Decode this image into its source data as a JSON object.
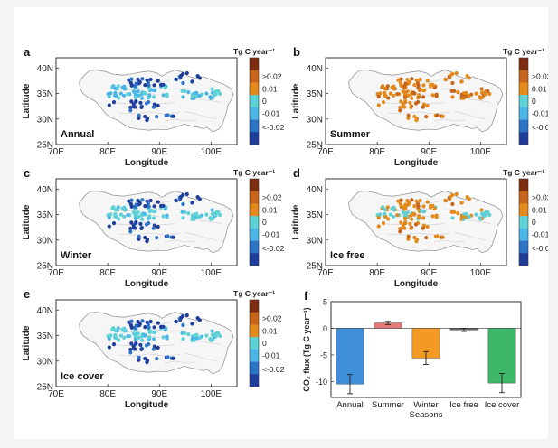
{
  "colors": {
    "class_high": "#7f2c10",
    "class_pos2": "#c8651b",
    "class_pos1": "#e48a1b",
    "class_zero": "#5ed1d6",
    "class_neg1": "#4bb5e8",
    "class_neg2": "#2b74c7",
    "class_low": "#1f3d9a",
    "map_outline": "#9a9a9a",
    "map_inner": "#d0d0d0",
    "bar_annual": "#3f8fd8",
    "bar_summer": "#e37a78",
    "bar_winter": "#f39a24",
    "bar_icefree": "#666666",
    "bar_icecover": "#3fb76a"
  },
  "map_axes": {
    "x_ticks": [
      "70E",
      "80E",
      "90E",
      "100E"
    ],
    "y_ticks": [
      "25N",
      "30N",
      "35N",
      "40N"
    ],
    "xlabel": "Longitude",
    "ylabel": "Latitude",
    "xlim": [
      70,
      105
    ],
    "ylim": [
      25,
      42
    ]
  },
  "colorbar": {
    "title": "Tg C year⁻¹",
    "labels": [
      ">0.02",
      "0.01",
      "0",
      "-0.01",
      "<-0.02"
    ]
  },
  "panels": [
    {
      "letter": "a",
      "label": "Annual",
      "scheme": "annual"
    },
    {
      "letter": "b",
      "label": "Summer",
      "scheme": "summer"
    },
    {
      "letter": "c",
      "label": "Winter",
      "scheme": "winter"
    },
    {
      "letter": "d",
      "label": "Ice free",
      "scheme": "icefree"
    },
    {
      "letter": "e",
      "label": "Ice cover",
      "scheme": "icecover"
    }
  ],
  "chart_data": {
    "type": "bar",
    "panel_letter": "f",
    "categories": [
      "Annual",
      "Summer",
      "Winter",
      "Ice free",
      "Ice cover"
    ],
    "values": [
      -10.5,
      1.0,
      -5.6,
      -0.3,
      -10.3
    ],
    "errors": [
      1.8,
      0.3,
      1.2,
      0.3,
      1.8
    ],
    "xlabel": "Seasons",
    "ylabel": "CO₂ flux (Tg C year⁻¹)",
    "ylim": [
      -13,
      5
    ],
    "y_ticks": [
      5,
      0,
      -5,
      -10
    ],
    "grid": false
  }
}
